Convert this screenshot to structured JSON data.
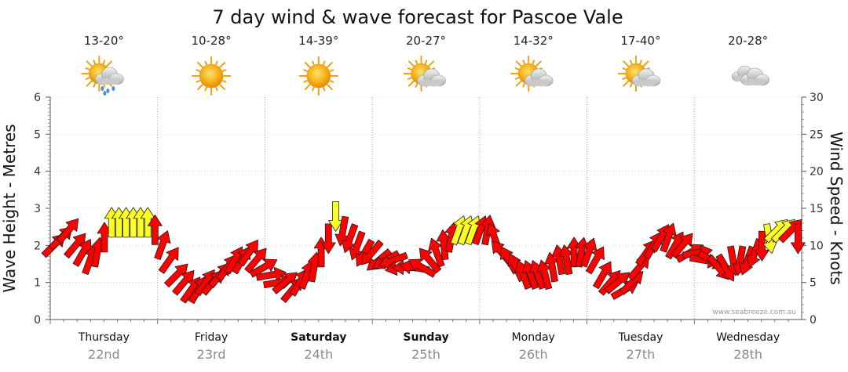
{
  "chart_data": {
    "type": "line",
    "title": "7 day wind & wave forecast for Pascoe Vale",
    "ylabel_left": "Wave Height - Metres",
    "ylabel_right": "Wind Speed - Knots",
    "ylim_left": [
      0,
      6
    ],
    "yticks_left": [
      "0",
      "1",
      "2",
      "3",
      "4",
      "5",
      "6"
    ],
    "ylim_right": [
      0,
      30
    ],
    "yticks_right": [
      "0",
      "5",
      "10",
      "15",
      "20",
      "25",
      "30"
    ],
    "grid": true,
    "credit": "www.seabreeze.com.au",
    "days": [
      {
        "day": "Thursday",
        "date": "22nd",
        "temp": "13-20°",
        "icon": "sun-cloud-rain-icon",
        "bold": false
      },
      {
        "day": "Friday",
        "date": "23rd",
        "temp": "10-28°",
        "icon": "sun-icon",
        "bold": false
      },
      {
        "day": "Saturday",
        "date": "24th",
        "temp": "14-39°",
        "icon": "sun-icon",
        "bold": true
      },
      {
        "day": "Sunday",
        "date": "25th",
        "temp": "20-27°",
        "icon": "sun-cloud-icon",
        "bold": true
      },
      {
        "day": "Monday",
        "date": "26th",
        "temp": "14-32°",
        "icon": "sun-cloud-icon",
        "bold": false
      },
      {
        "day": "Tuesday",
        "date": "27th",
        "temp": "17-40°",
        "icon": "sun-cloud-icon",
        "bold": false
      },
      {
        "day": "Wednesday",
        "date": "28th",
        "temp": "20-28°",
        "icon": "cloud-icon",
        "bold": false
      }
    ],
    "series": [
      {
        "unit": "knots",
        "values": [
          10,
          11,
          12,
          10,
          9,
          8,
          9,
          11,
          13,
          13,
          13,
          13,
          13,
          13,
          12,
          10,
          8,
          6,
          5,
          4,
          4,
          5,
          5,
          6,
          7,
          8,
          8,
          9,
          8,
          7,
          6,
          5,
          5,
          4,
          5,
          6,
          7,
          9,
          11,
          14,
          12,
          11,
          10,
          9,
          9,
          8,
          8,
          8,
          7,
          7,
          7,
          7,
          8,
          9,
          10,
          11,
          12,
          12,
          12,
          12,
          12,
          11,
          9,
          8,
          7,
          6,
          6,
          6,
          6,
          7,
          8,
          8,
          9,
          9,
          9,
          8,
          6,
          5,
          5,
          4,
          5,
          7,
          9,
          10,
          11,
          11,
          10,
          10,
          9,
          9,
          8,
          8,
          7,
          7,
          8,
          8,
          8,
          9,
          10,
          11,
          12,
          12,
          12,
          11
        ],
        "colors": [
          "R",
          "R",
          "R",
          "R",
          "R",
          "R",
          "R",
          "R",
          "Y",
          "Y",
          "Y",
          "Y",
          "Y",
          "Y",
          "R",
          "R",
          "R",
          "R",
          "R",
          "R",
          "R",
          "R",
          "R",
          "R",
          "R",
          "R",
          "R",
          "R",
          "R",
          "R",
          "R",
          "R",
          "R",
          "R",
          "R",
          "R",
          "R",
          "R",
          "R",
          "Y",
          "R",
          "R",
          "R",
          "R",
          "R",
          "R",
          "R",
          "R",
          "R",
          "R",
          "R",
          "R",
          "R",
          "R",
          "R",
          "R",
          "Y",
          "Y",
          "Y",
          "R",
          "R",
          "R",
          "R",
          "R",
          "R",
          "R",
          "R",
          "R",
          "R",
          "R",
          "R",
          "R",
          "R",
          "R",
          "R",
          "R",
          "R",
          "R",
          "R",
          "R",
          "R",
          "R",
          "R",
          "R",
          "R",
          "R",
          "R",
          "R",
          "R",
          "R",
          "R",
          "R",
          "R",
          "R",
          "R",
          "R",
          "R",
          "R",
          "R",
          "Y",
          "Y",
          "Y",
          "R",
          "R"
        ],
        "directions": [
          45,
          45,
          40,
          40,
          30,
          20,
          10,
          0,
          0,
          0,
          0,
          0,
          0,
          0,
          0,
          20,
          35,
          45,
          40,
          35,
          30,
          35,
          40,
          40,
          35,
          30,
          30,
          35,
          40,
          60,
          80,
          80,
          50,
          40,
          30,
          20,
          10,
          0,
          180,
          180,
          190,
          200,
          200,
          210,
          220,
          230,
          240,
          250,
          260,
          270,
          280,
          300,
          320,
          340,
          355,
          10,
          20,
          20,
          20,
          20,
          10,
          340,
          320,
          330,
          335,
          340,
          340,
          340,
          345,
          350,
          350,
          350,
          0,
          10,
          20,
          30,
          30,
          40,
          50,
          60,
          45,
          40,
          35,
          30,
          30,
          20,
          30,
          40,
          60,
          80,
          100,
          120,
          140,
          150,
          170,
          190,
          200,
          200,
          180,
          170,
          45,
          45,
          45,
          180
        ]
      }
    ]
  }
}
